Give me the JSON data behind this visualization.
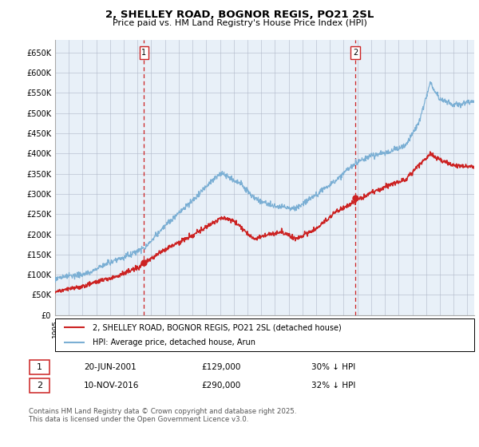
{
  "title": "2, SHELLEY ROAD, BOGNOR REGIS, PO21 2SL",
  "subtitle": "Price paid vs. HM Land Registry's House Price Index (HPI)",
  "ylim": [
    0,
    680000
  ],
  "yticks": [
    0,
    50000,
    100000,
    150000,
    200000,
    250000,
    300000,
    350000,
    400000,
    450000,
    500000,
    550000,
    600000,
    650000
  ],
  "ytick_labels": [
    "£0",
    "£50K",
    "£100K",
    "£150K",
    "£200K",
    "£250K",
    "£300K",
    "£350K",
    "£400K",
    "£450K",
    "£500K",
    "£550K",
    "£600K",
    "£650K"
  ],
  "hpi_color": "#7bafd4",
  "price_color": "#cc2222",
  "vline_color": "#cc2222",
  "t1": 2001.47,
  "p1": 129000,
  "t2": 2016.86,
  "p2": 290000,
  "legend_label_red": "2, SHELLEY ROAD, BOGNOR REGIS, PO21 2SL (detached house)",
  "legend_label_blue": "HPI: Average price, detached house, Arun",
  "footer": "Contains HM Land Registry data © Crown copyright and database right 2025.\nThis data is licensed under the Open Government Licence v3.0.",
  "table_row1": [
    "1",
    "20-JUN-2001",
    "£129,000",
    "30% ↓ HPI"
  ],
  "table_row2": [
    "2",
    "10-NOV-2016",
    "£290,000",
    "32% ↓ HPI"
  ],
  "bg_color": "#ffffff",
  "chart_bg": "#e8f0f8",
  "grid_color": "#b0b8c8"
}
